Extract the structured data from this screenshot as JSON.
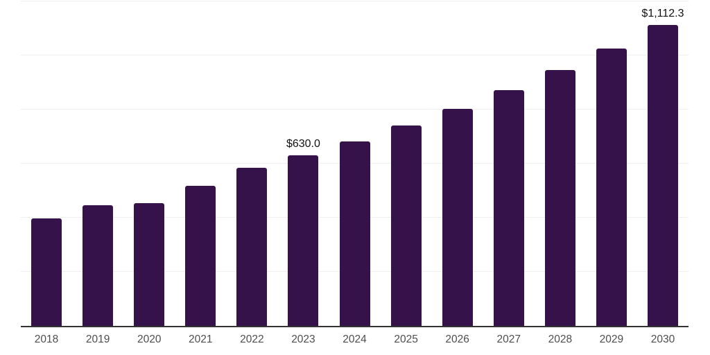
{
  "chart_data": {
    "type": "bar",
    "title": "",
    "xlabel": "",
    "ylabel": "",
    "categories": [
      "2018",
      "2019",
      "2020",
      "2021",
      "2022",
      "2023",
      "2024",
      "2025",
      "2026",
      "2027",
      "2028",
      "2029",
      "2030"
    ],
    "values": [
      398.0,
      447.5,
      453.0,
      517.0,
      586.0,
      630.0,
      683.3,
      741.1,
      803.8,
      871.8,
      945.5,
      1025.5,
      1112.3
    ],
    "data_labels": {
      "2023": "$630.0",
      "2030": "$1,112.3"
    },
    "ylim": [
      0,
      1200
    ],
    "grid": "horizontal",
    "gridline_interval": 200,
    "legend": "none",
    "colors": {
      "bar": "#351249",
      "gridline": "#efefef",
      "axis_line": "#333333",
      "tick_label": "#4d4d4d",
      "data_label": "#111111",
      "background": "#ffffff"
    }
  }
}
